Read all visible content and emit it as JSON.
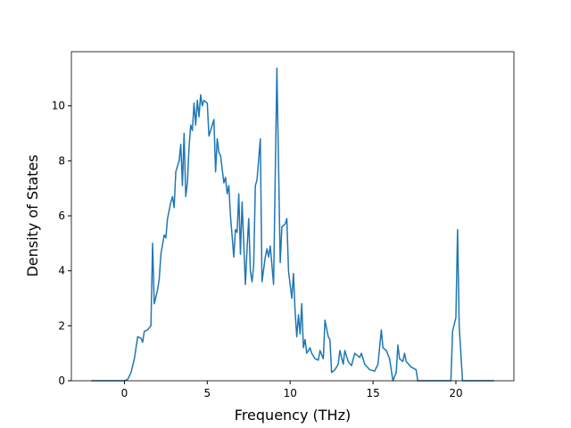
{
  "chart_data": {
    "type": "line",
    "x_label": "Frequency (THz)",
    "y_label": "Density of States",
    "xlim": [
      -3.2,
      23.5
    ],
    "ylim": [
      0,
      11.97
    ],
    "xticks": [
      0,
      5,
      10,
      15,
      20
    ],
    "yticks": [
      0,
      2,
      4,
      6,
      8,
      10
    ],
    "grid": false,
    "x": [
      -2,
      0,
      0.2,
      0.4,
      0.6,
      0.8,
      1.0,
      1.1,
      1.2,
      1.4,
      1.6,
      1.7,
      1.8,
      2.0,
      2.1,
      2.2,
      2.4,
      2.5,
      2.6,
      2.8,
      2.9,
      3.0,
      3.1,
      3.3,
      3.4,
      3.5,
      3.6,
      3.7,
      3.8,
      3.9,
      4.0,
      4.1,
      4.2,
      4.3,
      4.4,
      4.5,
      4.6,
      4.7,
      4.8,
      5.0,
      5.1,
      5.3,
      5.4,
      5.5,
      5.6,
      5.7,
      5.8,
      6.0,
      6.1,
      6.2,
      6.3,
      6.4,
      6.6,
      6.7,
      6.8,
      6.9,
      7.0,
      7.1,
      7.3,
      7.4,
      7.5,
      7.6,
      7.7,
      7.8,
      7.9,
      8.0,
      8.2,
      8.3,
      8.5,
      8.6,
      8.7,
      8.8,
      9.0,
      9.2,
      9.4,
      9.5,
      9.7,
      9.8,
      9.9,
      10.0,
      10.1,
      10.2,
      10.3,
      10.4,
      10.5,
      10.6,
      10.7,
      10.8,
      10.9,
      11.0,
      11.2,
      11.3,
      11.5,
      11.7,
      11.8,
      12.0,
      12.1,
      12.3,
      12.4,
      12.5,
      12.7,
      12.9,
      13.0,
      13.2,
      13.3,
      13.5,
      13.7,
      13.9,
      14.2,
      14.3,
      14.5,
      14.8,
      15.1,
      15.3,
      15.5,
      15.6,
      15.8,
      16.0,
      16.2,
      16.4,
      16.5,
      16.6,
      16.8,
      16.9,
      17.0,
      17.3,
      17.6,
      17.7,
      19.7,
      19.8,
      20.0,
      20.1,
      20.2,
      20.4,
      22.3
    ],
    "series": [
      {
        "name": "DOS",
        "color": "#1f77b4",
        "values": [
          0,
          0,
          0.05,
          0.3,
          0.8,
          1.6,
          1.55,
          1.4,
          1.8,
          1.85,
          2.0,
          5.0,
          2.8,
          3.3,
          3.7,
          4.6,
          5.3,
          5.2,
          5.9,
          6.5,
          6.7,
          6.3,
          7.6,
          8.0,
          8.6,
          7.1,
          9.0,
          6.7,
          7.2,
          8.5,
          9.3,
          9.1,
          10.1,
          9.3,
          10.2,
          9.6,
          10.4,
          10.0,
          10.2,
          10.1,
          8.9,
          9.3,
          9.5,
          7.6,
          8.8,
          8.3,
          8.2,
          7.2,
          7.4,
          6.8,
          7.1,
          6.0,
          4.5,
          5.5,
          5.4,
          6.8,
          4.6,
          6.5,
          3.5,
          4.8,
          5.9,
          4.0,
          3.6,
          4.2,
          7.1,
          7.3,
          8.8,
          3.6,
          4.5,
          4.8,
          4.5,
          4.9,
          3.5,
          11.37,
          4.3,
          5.6,
          5.7,
          5.9,
          4.0,
          3.5,
          3.0,
          3.9,
          2.5,
          1.6,
          2.4,
          1.7,
          2.8,
          1.2,
          1.5,
          1.0,
          1.2,
          1.0,
          0.8,
          0.75,
          1.1,
          0.8,
          2.2,
          1.6,
          1.5,
          0.3,
          0.4,
          0.6,
          1.1,
          0.6,
          1.1,
          0.7,
          0.55,
          1.0,
          0.85,
          1.0,
          0.6,
          0.4,
          0.35,
          0.6,
          1.85,
          1.2,
          1.1,
          0.8,
          0,
          0.3,
          1.3,
          0.8,
          0.7,
          1.0,
          0.7,
          0.5,
          0.4,
          0,
          0,
          1.8,
          2.3,
          5.5,
          2.0,
          0,
          0
        ]
      }
    ]
  }
}
